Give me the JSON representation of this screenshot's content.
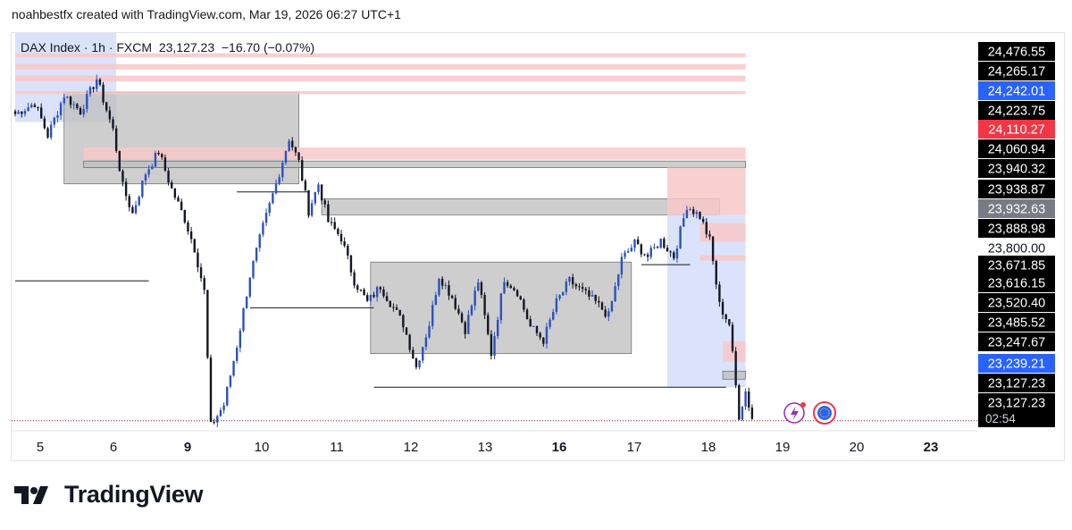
{
  "header": {
    "attribution": "noahbestfx created with TradingView.com, Mar 19, 2026 06:27 UTC+1"
  },
  "symbol": {
    "line": "DAX Index · 1h · FXCM  23,127.23  −16.70 (−0.07%)"
  },
  "brand": {
    "name": "TradingView"
  },
  "colors": {
    "up": "#2a52be",
    "down": "#131722",
    "zone_gray": "#bdbdbd",
    "zone_red": "#f8c8c8",
    "zone_blue": "#d6e0fb",
    "tag_black": "#000000",
    "tag_blue": "#2962ff",
    "tag_red": "#f23645",
    "tag_gray": "#787b86"
  },
  "chart_data": {
    "type": "candlestick",
    "title": "DAX Index · 1h · FXCM",
    "last_price": "23,127.23",
    "change": "−16.70 (−0.07%)",
    "countdown": "02:54",
    "x_tick_labels": [
      "5",
      "6",
      "9",
      "10",
      "11",
      "12",
      "13",
      "16",
      "17",
      "18",
      "19",
      "20",
      "23"
    ],
    "ylim": [
      23100,
      24560
    ],
    "price_labels": [
      {
        "text": "24,476.55",
        "value": 24476.55,
        "style": "black"
      },
      {
        "text": "24,265.17",
        "value": 24265.17,
        "style": "black"
      },
      {
        "text": "24,242.01",
        "value": 24242.01,
        "style": "blue"
      },
      {
        "text": "24,223.75",
        "value": 24223.75,
        "style": "black"
      },
      {
        "text": "24,110.27",
        "value": 24110.27,
        "style": "red"
      },
      {
        "text": "24,060.94",
        "value": 24060.94,
        "style": "black"
      },
      {
        "text": "23,940.32",
        "value": 23940.32,
        "style": "black"
      },
      {
        "text": "23,938.87",
        "value": 23938.87,
        "style": "black"
      },
      {
        "text": "23,932.63",
        "value": 23932.63,
        "style": "gray"
      },
      {
        "text": "23,888.98",
        "value": 23888.98,
        "style": "black"
      },
      {
        "text": "23,800.00",
        "value": 23800.0,
        "style": "plain"
      },
      {
        "text": "23,671.85",
        "value": 23671.85,
        "style": "black"
      },
      {
        "text": "23,616.15",
        "value": 23616.15,
        "style": "black"
      },
      {
        "text": "23,520.40",
        "value": 23520.4,
        "style": "black"
      },
      {
        "text": "23,485.52",
        "value": 23485.52,
        "style": "black"
      },
      {
        "text": "23,247.67",
        "value": 23247.67,
        "style": "black"
      },
      {
        "text": "23,239.21",
        "value": 23239.21,
        "style": "blue"
      },
      {
        "text": "23,127.23",
        "value": 23127.23,
        "style": "black"
      },
      {
        "text": "23,127.23",
        "value": 23127.23,
        "style": "last"
      }
    ],
    "waypoints": [
      [
        0,
        24260
      ],
      [
        6,
        24300
      ],
      [
        10,
        24180
      ],
      [
        15,
        24330
      ],
      [
        20,
        24270
      ],
      [
        25,
        24390
      ],
      [
        30,
        24200
      ],
      [
        33,
        23990
      ],
      [
        36,
        23890
      ],
      [
        40,
        24040
      ],
      [
        44,
        24120
      ],
      [
        48,
        23980
      ],
      [
        52,
        23870
      ],
      [
        55,
        23760
      ],
      [
        58,
        23600
      ],
      [
        60,
        23100
      ],
      [
        64,
        23180
      ],
      [
        68,
        23400
      ],
      [
        72,
        23660
      ],
      [
        76,
        23840
      ],
      [
        80,
        24000
      ],
      [
        84,
        24170
      ],
      [
        87,
        24080
      ],
      [
        90,
        23900
      ],
      [
        93,
        24000
      ],
      [
        96,
        23860
      ],
      [
        100,
        23800
      ],
      [
        104,
        23640
      ],
      [
        108,
        23560
      ],
      [
        112,
        23620
      ],
      [
        116,
        23540
      ],
      [
        119,
        23480
      ],
      [
        123,
        23320
      ],
      [
        127,
        23480
      ],
      [
        130,
        23660
      ],
      [
        134,
        23580
      ],
      [
        138,
        23460
      ],
      [
        142,
        23640
      ],
      [
        146,
        23370
      ],
      [
        150,
        23650
      ],
      [
        154,
        23600
      ],
      [
        158,
        23470
      ],
      [
        162,
        23420
      ],
      [
        166,
        23560
      ],
      [
        170,
        23640
      ],
      [
        174,
        23600
      ],
      [
        178,
        23560
      ],
      [
        182,
        23510
      ],
      [
        186,
        23720
      ],
      [
        190,
        23780
      ],
      [
        194,
        23730
      ],
      [
        198,
        23790
      ],
      [
        202,
        23730
      ],
      [
        206,
        23920
      ],
      [
        210,
        23880
      ],
      [
        213,
        23790
      ],
      [
        216,
        23550
      ],
      [
        219,
        23480
      ],
      [
        221,
        23250
      ],
      [
        222,
        23140
      ],
      [
        224,
        23230
      ],
      [
        226,
        23127
      ]
    ],
    "zones": [
      {
        "color": "blue",
        "x0": 0,
        "x1": 31,
        "y0": 24560,
        "y1": 24230
      },
      {
        "color": "gray",
        "x0": 15,
        "x1": 87,
        "y0": 24340,
        "y1": 24000
      },
      {
        "color": "red",
        "x0": 21,
        "x1": 224,
        "y0": 24135,
        "y1": 24090
      },
      {
        "color": "gray",
        "x0": 21,
        "x1": 224,
        "y0": 24085,
        "y1": 24060
      },
      {
        "color": "gray",
        "x0": 94,
        "x1": 216,
        "y0": 23945,
        "y1": 23885
      },
      {
        "color": "gray",
        "x0": 109,
        "x1": 189,
        "y0": 23710,
        "y1": 23370
      },
      {
        "color": "red",
        "x0": 200,
        "x1": 224,
        "y0": 24060,
        "y1": 23885
      },
      {
        "color": "blue",
        "x0": 200,
        "x1": 224,
        "y0": 23885,
        "y1": 23245
      },
      {
        "color": "red",
        "x0": 210,
        "x1": 224,
        "y0": 23855,
        "y1": 23785
      },
      {
        "color": "red",
        "x0": 210,
        "x1": 224,
        "y0": 23735,
        "y1": 23715
      },
      {
        "color": "red",
        "x0": 217,
        "x1": 224,
        "y0": 23415,
        "y1": 23340
      },
      {
        "color": "gray",
        "x0": 217,
        "x1": 224,
        "y0": 23305,
        "y1": 23275
      },
      {
        "color": "red",
        "x0": 0,
        "x1": 224,
        "y0": 24485,
        "y1": 24470
      },
      {
        "color": "red",
        "x0": 0,
        "x1": 224,
        "y0": 24445,
        "y1": 24425
      },
      {
        "color": "red",
        "x0": 0,
        "x1": 224,
        "y0": 24402,
        "y1": 24380
      },
      {
        "color": "red",
        "x0": 0,
        "x1": 224,
        "y0": 24345,
        "y1": 24333
      }
    ],
    "levels": [
      {
        "x0": 0,
        "x1": 41,
        "y": 23640
      },
      {
        "x0": 68,
        "x1": 90,
        "y": 23970
      },
      {
        "x0": 72,
        "x1": 110,
        "y": 23540
      },
      {
        "x0": 110,
        "x1": 218,
        "y": 23245
      },
      {
        "x0": 192,
        "x1": 207,
        "y": 23700
      }
    ]
  }
}
